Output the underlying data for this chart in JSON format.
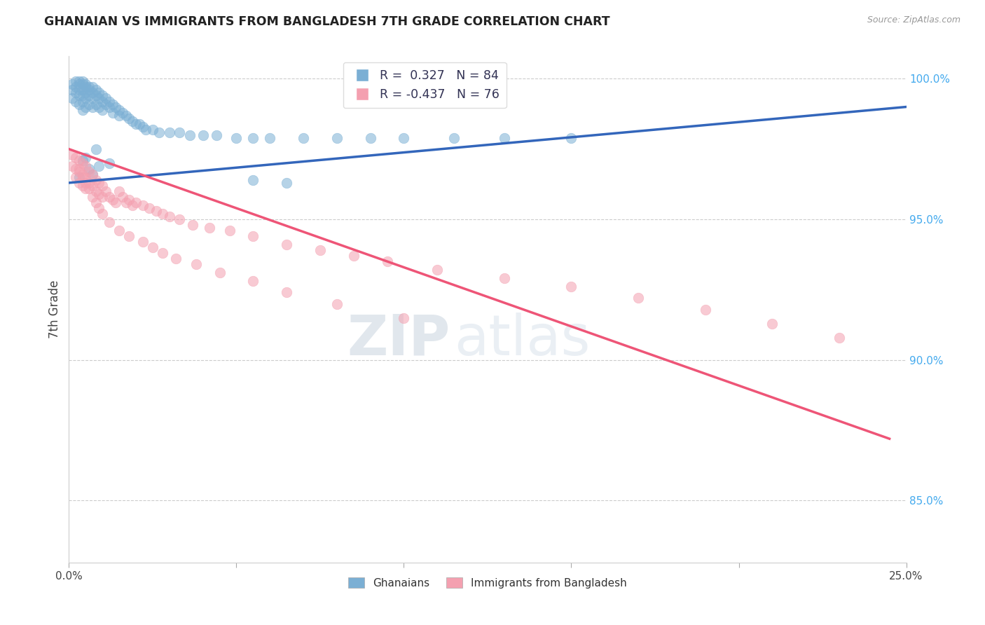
{
  "title": "GHANAIAN VS IMMIGRANTS FROM BANGLADESH 7TH GRADE CORRELATION CHART",
  "source": "Source: ZipAtlas.com",
  "ylabel": "7th Grade",
  "right_yticks_labels": [
    "85.0%",
    "90.0%",
    "95.0%",
    "100.0%"
  ],
  "right_yticks_vals": [
    0.85,
    0.9,
    0.95,
    1.0
  ],
  "ylim": [
    0.828,
    1.008
  ],
  "xlim": [
    0.0,
    0.25
  ],
  "legend_label1": "R =  0.327   N = 84",
  "legend_label2": "R = -0.437   N = 76",
  "legend_text1": "Ghanaians",
  "legend_text2": "Immigrants from Bangladesh",
  "blue_color": "#7BAFD4",
  "pink_color": "#F4A0B0",
  "line_blue": "#3366BB",
  "line_pink": "#EE5577",
  "watermark_zip": "ZIP",
  "watermark_atlas": "atlas",
  "blue_line_x": [
    0.0,
    0.25
  ],
  "blue_line_y": [
    0.963,
    0.99
  ],
  "pink_line_x": [
    0.0,
    0.245
  ],
  "pink_line_y": [
    0.975,
    0.872
  ],
  "blue_scatter_x": [
    0.001,
    0.001,
    0.001,
    0.002,
    0.002,
    0.002,
    0.002,
    0.003,
    0.003,
    0.003,
    0.003,
    0.003,
    0.004,
    0.004,
    0.004,
    0.004,
    0.004,
    0.004,
    0.005,
    0.005,
    0.005,
    0.005,
    0.005,
    0.006,
    0.006,
    0.006,
    0.006,
    0.007,
    0.007,
    0.007,
    0.007,
    0.008,
    0.008,
    0.008,
    0.009,
    0.009,
    0.009,
    0.01,
    0.01,
    0.01,
    0.011,
    0.011,
    0.012,
    0.012,
    0.013,
    0.013,
    0.014,
    0.015,
    0.015,
    0.016,
    0.017,
    0.018,
    0.019,
    0.02,
    0.021,
    0.022,
    0.023,
    0.025,
    0.027,
    0.03,
    0.033,
    0.036,
    0.04,
    0.044,
    0.05,
    0.055,
    0.06,
    0.07,
    0.08,
    0.09,
    0.1,
    0.115,
    0.13,
    0.15,
    0.055,
    0.065,
    0.012,
    0.008,
    0.006,
    0.004,
    0.003,
    0.005,
    0.007,
    0.009
  ],
  "blue_scatter_y": [
    0.998,
    0.996,
    0.993,
    0.999,
    0.997,
    0.995,
    0.992,
    0.999,
    0.998,
    0.996,
    0.994,
    0.991,
    0.999,
    0.998,
    0.996,
    0.994,
    0.992,
    0.989,
    0.998,
    0.997,
    0.995,
    0.993,
    0.99,
    0.997,
    0.996,
    0.994,
    0.991,
    0.997,
    0.995,
    0.993,
    0.99,
    0.996,
    0.994,
    0.991,
    0.995,
    0.993,
    0.99,
    0.994,
    0.992,
    0.989,
    0.993,
    0.991,
    0.992,
    0.99,
    0.991,
    0.988,
    0.99,
    0.989,
    0.987,
    0.988,
    0.987,
    0.986,
    0.985,
    0.984,
    0.984,
    0.983,
    0.982,
    0.982,
    0.981,
    0.981,
    0.981,
    0.98,
    0.98,
    0.98,
    0.979,
    0.979,
    0.979,
    0.979,
    0.979,
    0.979,
    0.979,
    0.979,
    0.979,
    0.979,
    0.964,
    0.963,
    0.97,
    0.975,
    0.968,
    0.971,
    0.965,
    0.972,
    0.966,
    0.969
  ],
  "pink_scatter_x": [
    0.001,
    0.001,
    0.002,
    0.002,
    0.002,
    0.003,
    0.003,
    0.003,
    0.004,
    0.004,
    0.004,
    0.005,
    0.005,
    0.005,
    0.006,
    0.006,
    0.007,
    0.007,
    0.008,
    0.008,
    0.009,
    0.009,
    0.01,
    0.01,
    0.011,
    0.012,
    0.013,
    0.014,
    0.015,
    0.016,
    0.017,
    0.018,
    0.019,
    0.02,
    0.022,
    0.024,
    0.026,
    0.028,
    0.03,
    0.033,
    0.037,
    0.042,
    0.048,
    0.055,
    0.065,
    0.075,
    0.085,
    0.095,
    0.11,
    0.13,
    0.15,
    0.17,
    0.19,
    0.21,
    0.23,
    0.003,
    0.004,
    0.005,
    0.006,
    0.007,
    0.008,
    0.009,
    0.01,
    0.012,
    0.015,
    0.018,
    0.022,
    0.025,
    0.028,
    0.032,
    0.038,
    0.045,
    0.055,
    0.065,
    0.08,
    0.1
  ],
  "pink_scatter_y": [
    0.973,
    0.969,
    0.972,
    0.968,
    0.965,
    0.971,
    0.967,
    0.963,
    0.97,
    0.966,
    0.962,
    0.969,
    0.965,
    0.961,
    0.967,
    0.963,
    0.966,
    0.962,
    0.964,
    0.96,
    0.963,
    0.959,
    0.962,
    0.958,
    0.96,
    0.958,
    0.957,
    0.956,
    0.96,
    0.958,
    0.956,
    0.957,
    0.955,
    0.956,
    0.955,
    0.954,
    0.953,
    0.952,
    0.951,
    0.95,
    0.948,
    0.947,
    0.946,
    0.944,
    0.941,
    0.939,
    0.937,
    0.935,
    0.932,
    0.929,
    0.926,
    0.922,
    0.918,
    0.913,
    0.908,
    0.968,
    0.965,
    0.963,
    0.961,
    0.958,
    0.956,
    0.954,
    0.952,
    0.949,
    0.946,
    0.944,
    0.942,
    0.94,
    0.938,
    0.936,
    0.934,
    0.931,
    0.928,
    0.924,
    0.92,
    0.915
  ]
}
